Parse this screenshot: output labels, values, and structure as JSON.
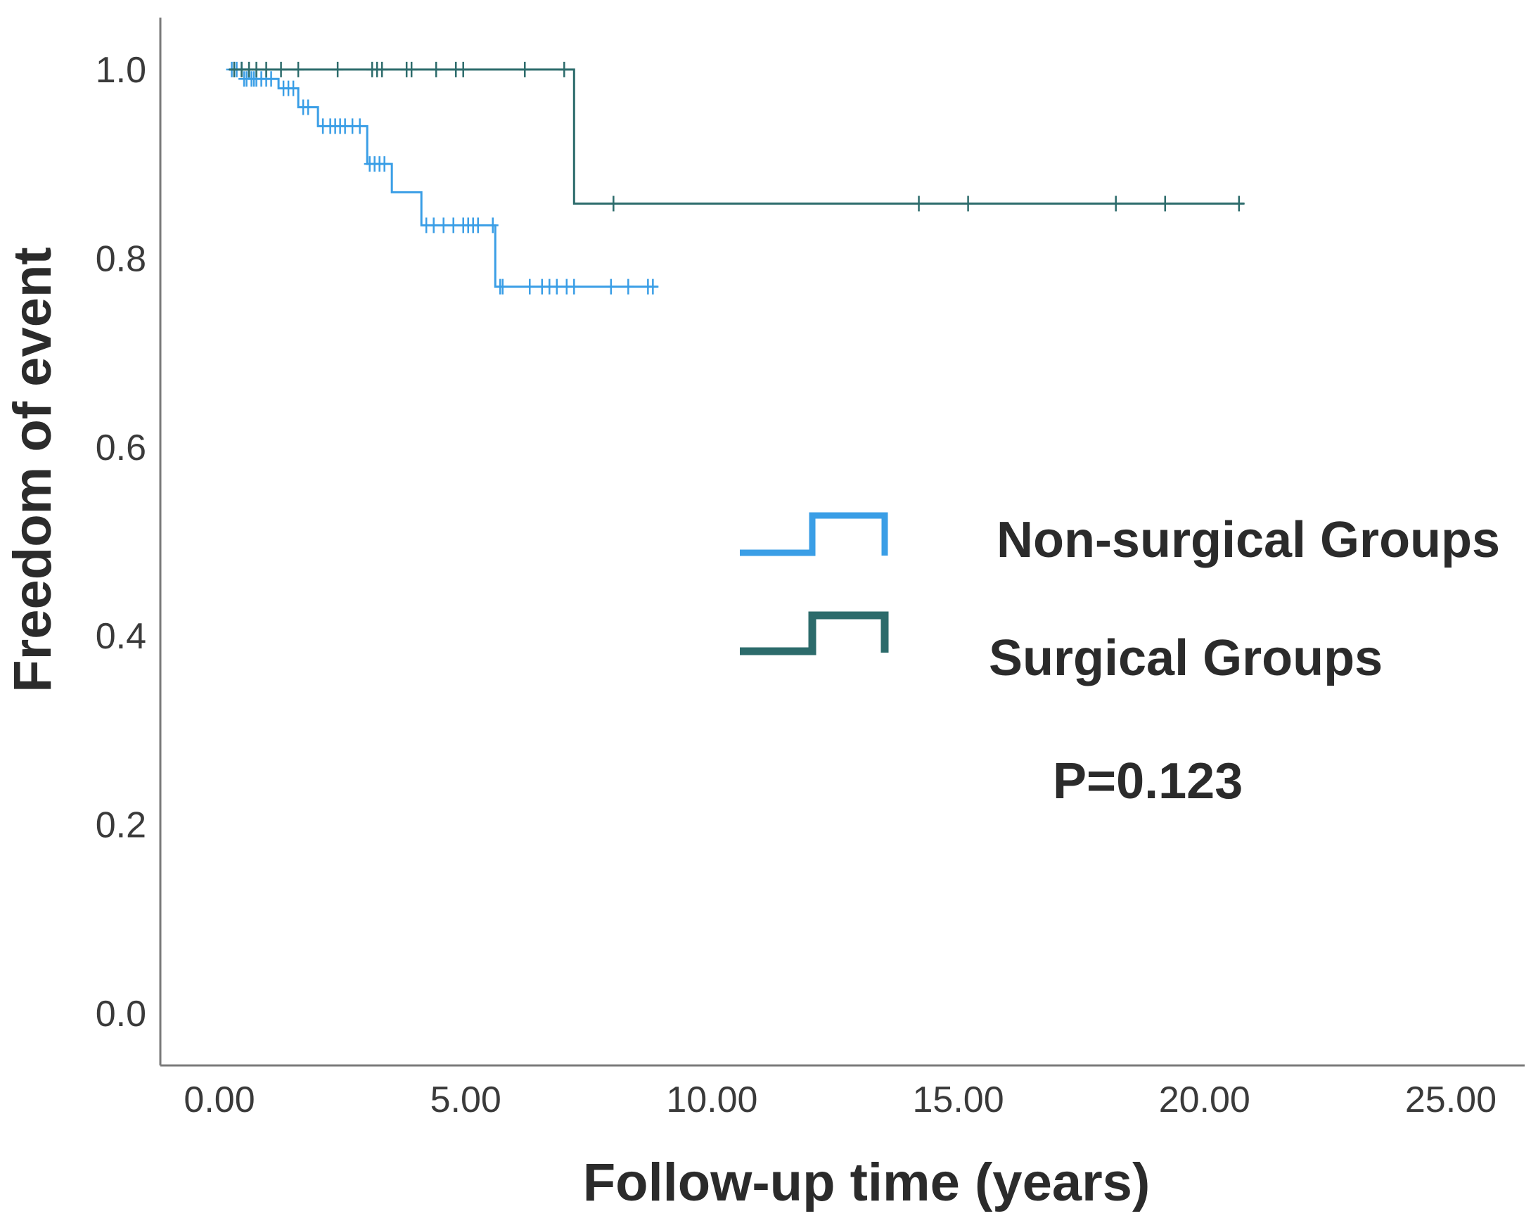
{
  "chart_data": {
    "type": "line",
    "subtype": "kaplan-meier",
    "title": "",
    "xlabel": "Follow-up time (years)",
    "ylabel": "Freedom of event",
    "xlim": [
      -1.2,
      26.5
    ],
    "ylim": [
      -0.055,
      1.055
    ],
    "xticks": [
      0,
      5,
      10,
      15,
      20,
      25
    ],
    "xtick_labels": [
      "0.00",
      "5.00",
      "10.00",
      "15.00",
      "20.00",
      "25.00"
    ],
    "yticks": [
      0,
      0.2,
      0.4,
      0.6,
      0.8,
      1.0
    ],
    "ytick_labels": [
      "0.0",
      "0.2",
      "0.4",
      "0.6",
      "0.8",
      "1.0"
    ],
    "grid": false,
    "legend_position": "right-center",
    "annotation": "P=0.123",
    "series": [
      {
        "name": "Non-surgical Groups",
        "color": "#3a9ee6",
        "x": [
          0.2,
          0.6,
          1.2,
          1.6,
          2.0,
          3.0,
          3.5,
          4.1,
          5.6,
          8.9
        ],
        "y": [
          1.0,
          0.99,
          0.98,
          0.96,
          0.94,
          0.9,
          0.87,
          0.835,
          0.77,
          0.77
        ],
        "censor_x": [
          0.25,
          0.3,
          0.35,
          0.45,
          0.5,
          0.55,
          0.65,
          0.7,
          0.75,
          0.85,
          0.95,
          1.05,
          1.3,
          1.4,
          1.5,
          1.7,
          1.8,
          2.1,
          2.25,
          2.35,
          2.45,
          2.55,
          2.7,
          2.85,
          3.05,
          3.15,
          3.25,
          3.35,
          4.2,
          4.35,
          4.55,
          4.75,
          4.95,
          5.05,
          5.15,
          5.25,
          5.55,
          5.7,
          5.75,
          6.3,
          6.55,
          6.7,
          6.85,
          7.05,
          7.2,
          7.95,
          8.3,
          8.7,
          8.8
        ],
        "censor_y": [
          1.0,
          1.0,
          1.0,
          1.0,
          0.99,
          0.99,
          0.99,
          0.99,
          0.99,
          0.99,
          0.99,
          0.99,
          0.98,
          0.98,
          0.98,
          0.96,
          0.96,
          0.94,
          0.94,
          0.94,
          0.94,
          0.94,
          0.94,
          0.94,
          0.9,
          0.9,
          0.9,
          0.9,
          0.835,
          0.835,
          0.835,
          0.835,
          0.835,
          0.835,
          0.835,
          0.835,
          0.835,
          0.77,
          0.77,
          0.77,
          0.77,
          0.77,
          0.77,
          0.77,
          0.77,
          0.77,
          0.77,
          0.77,
          0.77
        ]
      },
      {
        "name": "Surgical Groups",
        "color": "#2c6b6b",
        "x": [
          0.2,
          7.2,
          20.8
        ],
        "y": [
          1.0,
          0.858,
          0.858
        ],
        "censor_x": [
          0.3,
          0.45,
          0.6,
          0.75,
          0.95,
          1.25,
          1.6,
          2.4,
          3.1,
          3.2,
          3.3,
          3.8,
          3.9,
          4.4,
          4.8,
          4.95,
          6.2,
          7.0,
          8.0,
          14.2,
          15.2,
          18.2,
          19.2,
          20.7
        ],
        "censor_y": [
          1.0,
          1.0,
          1.0,
          1.0,
          1.0,
          1.0,
          1.0,
          1.0,
          1.0,
          1.0,
          1.0,
          1.0,
          1.0,
          1.0,
          1.0,
          1.0,
          1.0,
          1.0,
          0.858,
          0.858,
          0.858,
          0.858,
          0.858,
          0.858
        ]
      }
    ]
  }
}
